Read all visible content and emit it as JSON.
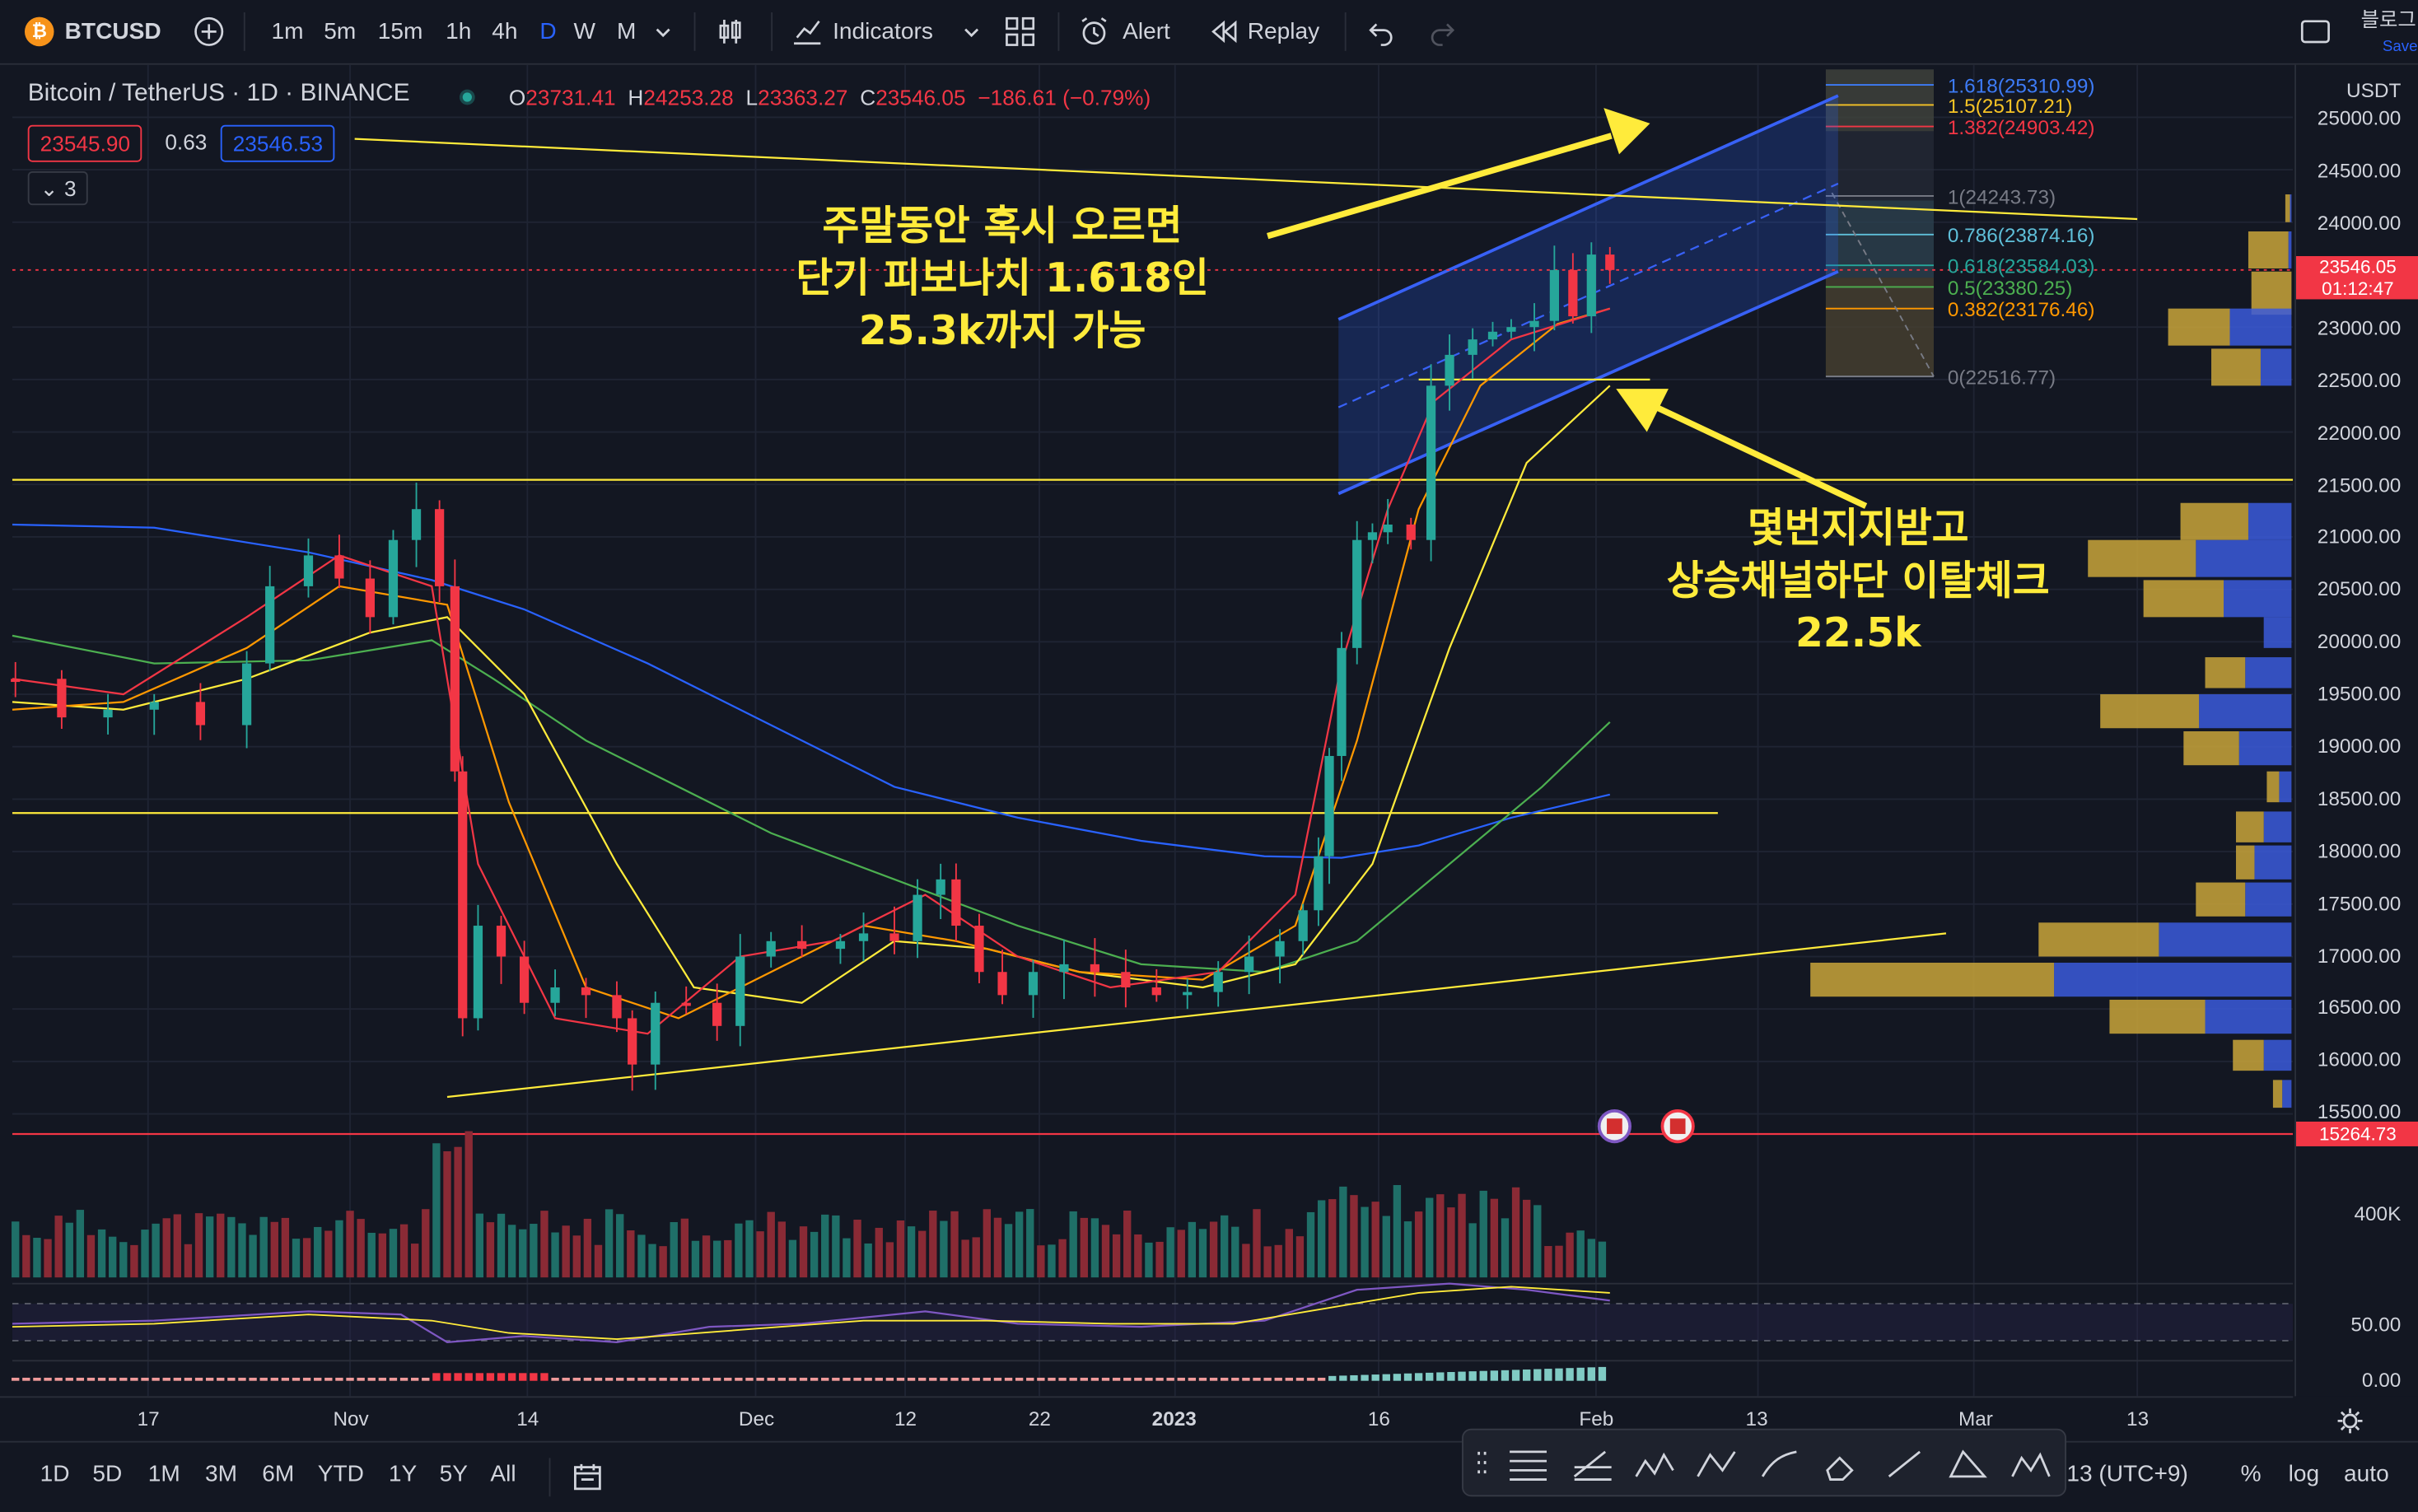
{
  "toolbar": {
    "symbol": "BTCUSD",
    "intervals": [
      "1m",
      "5m",
      "15m",
      "1h",
      "4h",
      "D",
      "W",
      "M"
    ],
    "active_interval": "D",
    "indicators_label": "Indicators",
    "alert_label": "Alert",
    "replay_label": "Replay",
    "right_text": "블로그",
    "save_text": "Save"
  },
  "legend": {
    "title": "Bitcoin / TetherUS · 1D · BINANCE",
    "o_label": "O",
    "o": "23731.41",
    "h_label": "H",
    "h": "24253.28",
    "l_label": "L",
    "l": "23363.27",
    "c_label": "C",
    "c": "23546.05",
    "change": "−186.61 (−0.79%)",
    "sell": "23545.90",
    "spread": "0.63",
    "buy": "23546.53",
    "collapse_count": "3"
  },
  "colors": {
    "up": "#26a69a",
    "down": "#f23645",
    "accent": "#2962ff",
    "annotation": "#ffeb3b",
    "channel": "#3861f6"
  },
  "annotations": {
    "top": [
      "주말동안 혹시 오르면",
      "단기 피보나치 1.618인",
      "25.3k까지 가능"
    ],
    "bottom": [
      "몇번지지받고",
      "상승채널하단 이탈체크",
      "22.5k"
    ]
  },
  "fib_levels": [
    {
      "label": "1.618(25310.99)",
      "color": "#3d7bf7",
      "price": 25310.99
    },
    {
      "label": "1.5(25107.21)",
      "color": "#f7c325",
      "price": 25107.21
    },
    {
      "label": "1.382(24903.42)",
      "color": "#f23645",
      "price": 24903.42
    },
    {
      "label": "1(24243.73)",
      "color": "#787b86",
      "price": 24243.73
    },
    {
      "label": "0.786(23874.16)",
      "color": "#5fbfd9",
      "price": 23874.16
    },
    {
      "label": "0.618(23584.03)",
      "color": "#26a69a",
      "price": 23584.03
    },
    {
      "label": "0.5(23380.25)",
      "color": "#4caf50",
      "price": 23380.25
    },
    {
      "label": "0.382(23176.46)",
      "color": "#ff9800",
      "price": 23176.46
    },
    {
      "label": "0(22516.77)",
      "color": "#787b86",
      "price": 22516.77
    }
  ],
  "price_axis": {
    "currency": "USDT",
    "ticks": [
      "25000.00",
      "24500.00",
      "24000.00",
      "23000.00",
      "22500.00",
      "22000.00",
      "21500.00",
      "21000.00",
      "20500.00",
      "20000.00",
      "19500.00",
      "19000.00",
      "18500.00",
      "18000.00",
      "17500.00",
      "17000.00",
      "16500.00",
      "16000.00",
      "15500.00"
    ],
    "last_price": "23546.05",
    "countdown": "01:12:47",
    "marker_price": "15264.73",
    "volume_tick": "400K",
    "osc_ticks": [
      "50.00",
      "0.00"
    ]
  },
  "time_axis": [
    "17",
    "Nov",
    "14",
    "Dec",
    "12",
    "22",
    "2023",
    "16",
    "Feb",
    "13",
    "Mar",
    "13"
  ],
  "bottom_bar": {
    "ranges": [
      "1D",
      "5D",
      "1M",
      "3M",
      "6M",
      "YTD",
      "1Y",
      "5Y",
      "All"
    ],
    "timezone": ":13 (UTC+9)",
    "percent": "%",
    "log": "log",
    "auto": "auto"
  }
}
